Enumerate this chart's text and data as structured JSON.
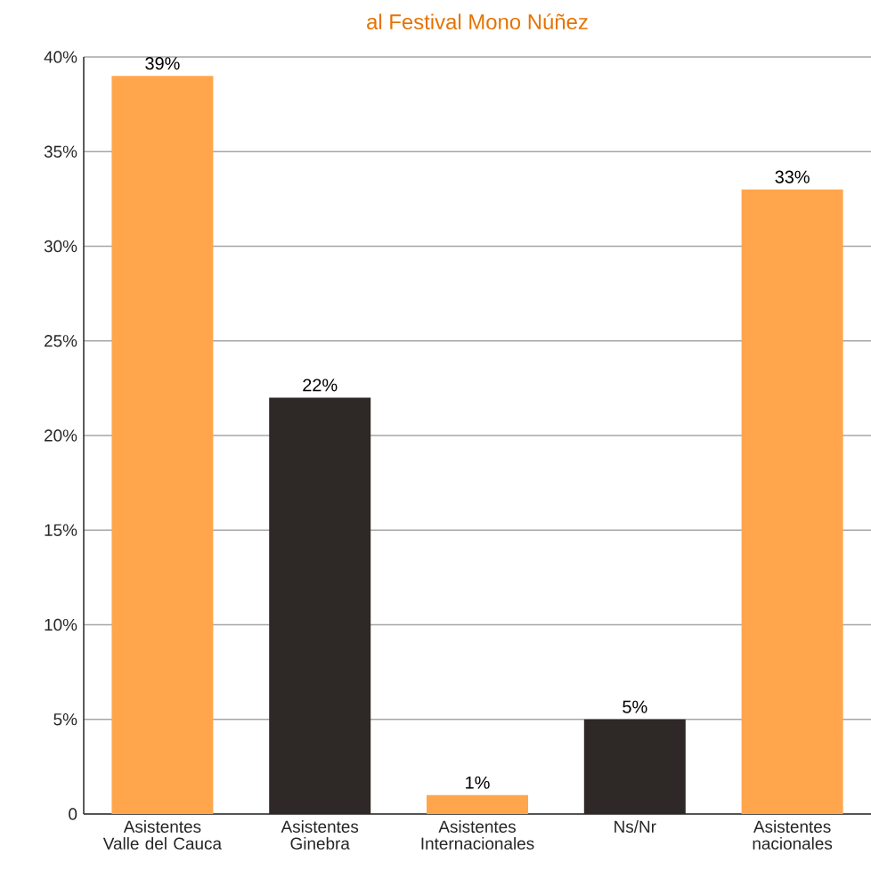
{
  "chart_data": {
    "type": "bar",
    "title": "al Festival Mono Núñez",
    "categories": [
      "Asistentes Valle del Cauca",
      "Asistentes Ginebra",
      "Asistentes Internacionales",
      "Ns/Nr",
      "Asistentes nacionales"
    ],
    "values": [
      39,
      22,
      1,
      5,
      33
    ],
    "colors": [
      "#ffa64d",
      "#2e2926",
      "#ffa64d",
      "#2e2926",
      "#ffa64d"
    ],
    "value_labels": [
      "39%",
      "22%",
      "1%",
      "5%",
      "33%"
    ],
    "ylim": [
      0,
      40
    ],
    "yticks": [
      0,
      {
        "value": 5,
        "label": "5%"
      },
      {
        "value": 10,
        "label": "10%"
      },
      {
        "value": 15,
        "label": "15%"
      },
      {
        "value": 20,
        "label": "20%"
      },
      {
        "value": 25,
        "label": "25%"
      },
      {
        "value": 30,
        "label": "30%"
      },
      {
        "value": 35,
        "label": "35%"
      },
      {
        "value": 40,
        "label": "40%"
      }
    ],
    "grid": "y"
  }
}
